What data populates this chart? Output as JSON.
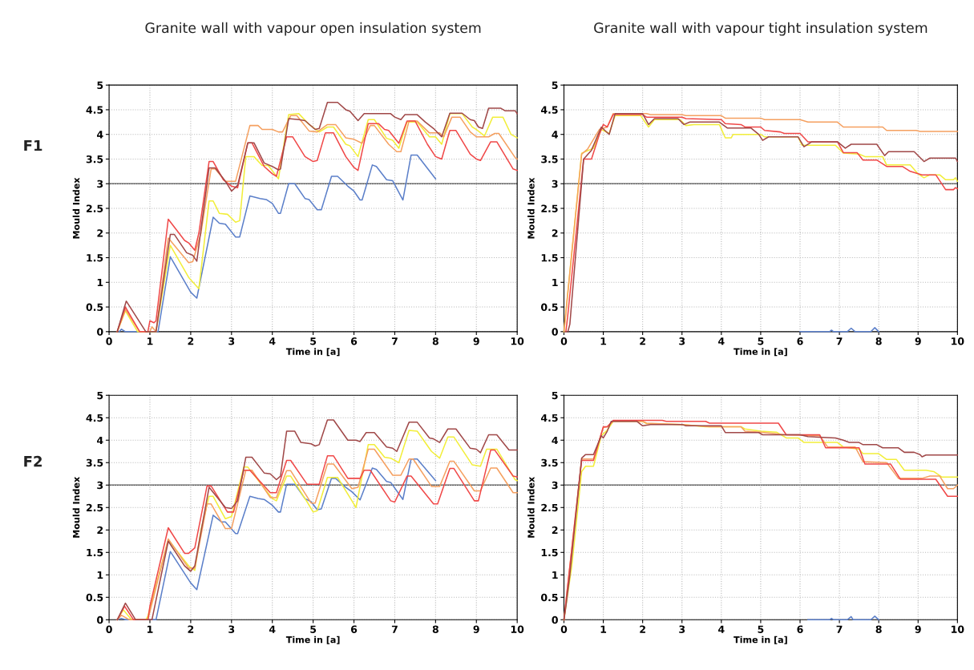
{
  "chart_data": [
    {
      "type": "line",
      "title": "Granite wall with vapour open insulation system",
      "annotations": [
        "F1"
      ],
      "xlabel": "Time in [a]",
      "ylabel": "Mould Index",
      "xlim": [
        0,
        10
      ],
      "ylim": [
        0,
        5
      ],
      "xticks": [
        0,
        1,
        2,
        3,
        4,
        5,
        6,
        7,
        8,
        9,
        10
      ],
      "yticks": [
        0,
        0.5,
        1,
        1.5,
        2,
        2.5,
        3,
        3.5,
        4,
        4.5,
        5
      ],
      "grid": true,
      "line_style": "solid",
      "ref_lines": [
        {
          "axis": "y",
          "value": 3,
          "color": "#555555"
        }
      ],
      "series": [
        {
          "color": "#5b7fc9",
          "x": [
            0.25,
            0.3,
            0.4,
            1.2,
            1.5,
            2.0,
            2.15,
            2.55,
            2.7,
            2.85,
            3.1,
            3.2,
            3.45,
            3.7,
            3.85,
            4.0,
            4.15,
            4.2,
            4.4,
            4.55,
            4.8,
            4.9,
            5.1,
            5.2,
            5.45,
            5.6,
            5.85,
            6.0,
            6.15,
            6.2,
            6.45,
            6.55,
            6.8,
            6.95,
            7.2,
            7.4,
            7.55,
            8.0
          ],
          "values": [
            0,
            0.05,
            0,
            0,
            1.52,
            0.8,
            0.68,
            2.32,
            2.2,
            2.18,
            1.92,
            1.92,
            2.75,
            2.7,
            2.68,
            2.6,
            2.4,
            2.4,
            3.0,
            3.0,
            2.7,
            2.68,
            2.47,
            2.47,
            3.15,
            3.15,
            2.95,
            2.85,
            2.67,
            2.67,
            3.38,
            3.35,
            3.08,
            3.06,
            2.67,
            3.58,
            3.58,
            3.1
          ]
        },
        {
          "color": "#f2ee3a",
          "x": [
            0.2,
            0.4,
            0.7,
            1.15,
            1.5,
            1.95,
            2.2,
            2.45,
            2.55,
            2.7,
            2.9,
            3.1,
            3.2,
            3.35,
            3.55,
            3.75,
            3.9,
            4.15,
            4.4,
            4.65,
            4.9,
            5.15,
            5.35,
            5.5,
            5.8,
            5.9,
            6.1,
            6.35,
            6.5,
            6.8,
            6.95,
            7.1,
            7.3,
            7.55,
            7.85,
            8.0,
            8.15,
            8.35,
            8.65,
            8.9,
            9.0,
            9.2,
            9.4,
            9.65,
            9.85,
            10
          ],
          "values": [
            0,
            0.42,
            0,
            0,
            1.75,
            1.1,
            0.87,
            2.65,
            2.65,
            2.4,
            2.38,
            2.22,
            2.25,
            3.55,
            3.55,
            3.37,
            3.37,
            3.1,
            4.4,
            4.42,
            4.2,
            4.05,
            4.15,
            4.15,
            3.8,
            3.77,
            3.55,
            4.3,
            4.3,
            3.92,
            3.88,
            3.72,
            4.25,
            4.25,
            3.95,
            3.95,
            3.8,
            4.42,
            4.42,
            4.15,
            4.1,
            3.97,
            4.35,
            4.35,
            4.0,
            3.93
          ]
        },
        {
          "color": "#f5a060",
          "x": [
            0.2,
            0.4,
            0.75,
            1.0,
            1.05,
            1.15,
            1.45,
            1.95,
            2.05,
            2.25,
            2.5,
            2.6,
            2.85,
            3.1,
            3.45,
            3.65,
            3.75,
            4.0,
            4.15,
            4.25,
            4.45,
            4.6,
            4.9,
            5.1,
            5.35,
            5.55,
            5.8,
            6.0,
            6.2,
            6.4,
            6.5,
            6.85,
            7.05,
            7.15,
            7.35,
            7.55,
            7.85,
            8.1,
            8.2,
            8.4,
            8.6,
            8.85,
            9.0,
            9.3,
            9.45,
            9.55,
            9.95,
            10
          ],
          "values": [
            0,
            0.45,
            0,
            0,
            0.1,
            0,
            1.9,
            1.4,
            1.42,
            2.0,
            3.3,
            3.3,
            3.05,
            3.05,
            4.18,
            4.18,
            4.1,
            4.1,
            4.05,
            4.05,
            4.38,
            4.38,
            4.07,
            4.05,
            4.2,
            4.2,
            3.93,
            3.9,
            3.82,
            4.18,
            4.18,
            3.8,
            3.65,
            3.65,
            4.27,
            4.27,
            4.03,
            4.03,
            3.95,
            4.35,
            4.35,
            4.05,
            3.95,
            3.95,
            4.02,
            4.02,
            3.53,
            3.5
          ]
        },
        {
          "color": "#f04848",
          "x": [
            0.2,
            0.4,
            0.75,
            0.95,
            1.0,
            1.1,
            1.15,
            1.45,
            1.85,
            1.95,
            2.1,
            2.2,
            2.45,
            2.55,
            2.8,
            3.0,
            3.15,
            3.4,
            3.5,
            3.8,
            4.0,
            4.1,
            4.35,
            4.5,
            4.8,
            5.0,
            5.1,
            5.3,
            5.5,
            5.8,
            6.0,
            6.1,
            6.35,
            6.6,
            6.75,
            6.85,
            7.1,
            7.3,
            7.5,
            7.8,
            8.0,
            8.15,
            8.35,
            8.5,
            8.85,
            9.0,
            9.1,
            9.35,
            9.5,
            9.9,
            10
          ],
          "values": [
            0,
            0.5,
            0,
            0,
            0.22,
            0.18,
            0.22,
            2.28,
            1.85,
            1.8,
            1.65,
            2.0,
            3.45,
            3.45,
            3.08,
            2.95,
            2.92,
            3.83,
            3.83,
            3.35,
            3.2,
            3.15,
            3.95,
            3.95,
            3.55,
            3.45,
            3.47,
            4.03,
            4.03,
            3.55,
            3.33,
            3.27,
            4.22,
            4.22,
            4.1,
            4.08,
            3.82,
            4.27,
            4.27,
            3.8,
            3.55,
            3.5,
            4.08,
            4.08,
            3.6,
            3.5,
            3.47,
            3.85,
            3.85,
            3.3,
            3.27
          ]
        },
        {
          "color": "#a04848",
          "x": [
            0.2,
            0.42,
            0.9,
            1.15,
            1.5,
            1.6,
            1.9,
            2.05,
            2.15,
            2.45,
            2.6,
            2.85,
            3.0,
            3.15,
            3.4,
            3.55,
            3.8,
            4.0,
            4.15,
            4.2,
            4.4,
            4.65,
            4.8,
            5.05,
            5.15,
            5.35,
            5.6,
            5.8,
            5.9,
            6.1,
            6.25,
            6.9,
            7.0,
            7.15,
            7.25,
            7.55,
            7.75,
            7.95,
            8.15,
            8.35,
            8.65,
            8.85,
            8.95,
            9.05,
            9.15,
            9.3,
            9.6,
            9.7,
            9.95,
            10
          ],
          "values": [
            0,
            0.62,
            0,
            0,
            1.97,
            1.97,
            1.6,
            1.55,
            1.43,
            3.32,
            3.32,
            3.05,
            2.85,
            2.97,
            3.83,
            3.83,
            3.42,
            3.35,
            3.28,
            3.3,
            4.32,
            4.3,
            4.28,
            4.1,
            4.12,
            4.65,
            4.65,
            4.5,
            4.47,
            4.28,
            4.42,
            4.42,
            4.35,
            4.3,
            4.4,
            4.4,
            4.25,
            4.12,
            3.95,
            4.43,
            4.43,
            4.3,
            4.28,
            4.15,
            4.12,
            4.53,
            4.53,
            4.48,
            4.48,
            4.42
          ]
        }
      ]
    },
    {
      "type": "line",
      "title": "Granite wall with vapour tight insulation system",
      "xlabel": "Time in [a]",
      "ylabel": "Mould Index",
      "xlim": [
        0,
        10
      ],
      "ylim": [
        0,
        5
      ],
      "xticks": [
        0,
        1,
        2,
        3,
        4,
        5,
        6,
        7,
        8,
        9,
        10
      ],
      "yticks": [
        0,
        0.5,
        1,
        1.5,
        2,
        2.5,
        3,
        3.5,
        4,
        4.5,
        5
      ],
      "grid": true,
      "line_style": "solid",
      "ref_lines": [
        {
          "axis": "y",
          "value": 3,
          "color": "#555555"
        }
      ],
      "series": [
        {
          "color": "#5b7fc9",
          "x": [
            6.0,
            6.75,
            6.8,
            6.85,
            7.2,
            7.3,
            7.4,
            7.8,
            7.9,
            8.0
          ],
          "values": [
            0,
            0,
            0.03,
            0,
            0,
            0.07,
            0,
            0,
            0.08,
            0
          ]
        },
        {
          "color": "#f2ee3a",
          "x": [
            0,
            0.45,
            0.75,
            0.95,
            1.15,
            1.3,
            1.95,
            2.15,
            2.3,
            2.95,
            3.1,
            3.3,
            3.95,
            4.1,
            4.25,
            4.3,
            5.0,
            5.1,
            5.95,
            6.05,
            6.9,
            7.1,
            7.5,
            7.65,
            8.1,
            8.2,
            8.8,
            9.0,
            9.15,
            9.3,
            9.55,
            9.7,
            9.9,
            9.95,
            10
          ],
          "values": [
            0,
            3.62,
            3.72,
            4.1,
            4.02,
            4.38,
            4.38,
            4.15,
            4.3,
            4.3,
            4.18,
            4.2,
            4.2,
            3.93,
            3.93,
            4.0,
            4.0,
            3.95,
            3.95,
            3.78,
            3.78,
            3.62,
            3.6,
            3.55,
            3.55,
            3.38,
            3.38,
            3.2,
            3.12,
            3.18,
            3.18,
            3.08,
            3.08,
            3.12,
            3.05
          ]
        },
        {
          "color": "#f5a060",
          "x": [
            0,
            0.45,
            0.6,
            0.9,
            1.1,
            1.25,
            2.1,
            2.2,
            3.0,
            3.1,
            4.0,
            4.1,
            5.0,
            5.1,
            6.0,
            6.2,
            6.95,
            7.1,
            8.1,
            8.2,
            8.95,
            9.05,
            10
          ],
          "values": [
            0,
            3.6,
            3.7,
            4.1,
            4.15,
            4.42,
            4.42,
            4.4,
            4.4,
            4.38,
            4.38,
            4.33,
            4.33,
            4.3,
            4.3,
            4.25,
            4.25,
            4.15,
            4.15,
            4.08,
            4.08,
            4.06,
            4.06
          ]
        },
        {
          "color": "#f04848",
          "x": [
            0.05,
            0.1,
            0.5,
            0.7,
            0.9,
            1.0,
            1.1,
            1.25,
            2.0,
            2.1,
            3.0,
            3.1,
            4.0,
            4.1,
            4.5,
            4.6,
            5.0,
            5.1,
            5.5,
            5.6,
            6.0,
            6.2,
            6.95,
            7.1,
            7.45,
            7.6,
            7.95,
            8.2,
            8.6,
            8.8,
            9.1,
            9.45,
            9.7,
            9.9,
            9.95,
            10
          ],
          "values": [
            0,
            0.35,
            3.5,
            3.5,
            4.0,
            4.2,
            4.15,
            4.4,
            4.4,
            4.35,
            4.35,
            4.32,
            4.3,
            4.22,
            4.2,
            4.15,
            4.15,
            4.08,
            4.05,
            4.02,
            4.02,
            3.85,
            3.85,
            3.63,
            3.63,
            3.48,
            3.48,
            3.35,
            3.35,
            3.25,
            3.18,
            3.18,
            2.88,
            2.88,
            2.92,
            2.9
          ]
        },
        {
          "color": "#a04848",
          "x": [
            0.1,
            0.15,
            0.5,
            0.7,
            0.95,
            1.15,
            1.3,
            2.0,
            2.15,
            2.3,
            2.9,
            3.05,
            3.2,
            3.95,
            4.15,
            4.75,
            4.95,
            5.05,
            5.2,
            5.95,
            6.1,
            6.3,
            6.95,
            7.15,
            7.3,
            7.95,
            8.15,
            8.25,
            8.9,
            9.15,
            9.3,
            9.95,
            10
          ],
          "values": [
            0,
            0.15,
            3.5,
            3.68,
            4.15,
            4.0,
            4.42,
            4.42,
            4.2,
            4.32,
            4.32,
            4.2,
            4.25,
            4.25,
            4.13,
            4.13,
            4.0,
            3.88,
            3.95,
            3.95,
            3.75,
            3.85,
            3.85,
            3.72,
            3.8,
            3.8,
            3.57,
            3.65,
            3.65,
            3.45,
            3.52,
            3.52,
            3.45
          ]
        }
      ]
    },
    {
      "type": "line",
      "annotations": [
        "F2"
      ],
      "xlabel": "Time in [a]",
      "ylabel": "Mould Index",
      "xlim": [
        0,
        10
      ],
      "ylim": [
        0,
        5
      ],
      "xticks": [
        0,
        1,
        2,
        3,
        4,
        5,
        6,
        7,
        8,
        9,
        10
      ],
      "yticks": [
        0,
        0.5,
        1,
        1.5,
        2,
        2.5,
        3,
        3.5,
        4,
        4.5,
        5
      ],
      "grid": true,
      "line_style": "solid",
      "ref_lines": [
        {
          "axis": "y",
          "value": 3,
          "color": "#555555"
        }
      ],
      "series": [
        {
          "color": "#5b7fc9",
          "x": [
            0.2,
            0.3,
            0.4,
            1.15,
            1.5,
            2.0,
            2.15,
            2.55,
            2.75,
            2.85,
            3.1,
            3.15,
            3.45,
            3.65,
            3.8,
            4.0,
            4.15,
            4.2,
            4.35,
            4.55,
            4.8,
            4.95,
            5.1,
            5.2,
            5.45,
            5.55,
            5.8,
            5.95,
            6.15,
            6.45,
            6.55,
            6.8,
            6.9,
            7.2,
            7.4,
            7.55,
            8.0
          ],
          "values": [
            0,
            0.03,
            0,
            0,
            1.52,
            0.82,
            0.67,
            2.33,
            2.18,
            2.18,
            1.92,
            1.92,
            2.75,
            2.7,
            2.68,
            2.55,
            2.4,
            2.4,
            3.02,
            3.02,
            2.7,
            2.63,
            2.45,
            2.47,
            3.15,
            3.15,
            2.95,
            2.85,
            2.67,
            3.38,
            3.35,
            3.08,
            3.06,
            2.68,
            3.58,
            3.58,
            3.1
          ]
        },
        {
          "color": "#f2ee3a",
          "x": [
            0.2,
            0.35,
            0.55,
            0.9,
            0.95,
            1.45,
            1.95,
            2.1,
            2.25,
            2.45,
            2.55,
            2.85,
            3.0,
            3.3,
            3.4,
            4.0,
            4.1,
            4.35,
            4.45,
            4.85,
            5.0,
            5.1,
            5.35,
            5.6,
            5.95,
            6.05,
            6.35,
            6.5,
            6.75,
            6.9,
            7.1,
            7.35,
            7.55,
            7.9,
            8.1,
            8.3,
            8.45,
            8.9,
            9.1,
            9.25,
            9.5,
            9.95,
            10
          ],
          "values": [
            0,
            0.22,
            0,
            0,
            0.08,
            1.78,
            1.2,
            1.1,
            2.0,
            2.75,
            2.75,
            2.25,
            2.3,
            3.4,
            3.4,
            2.7,
            2.65,
            3.2,
            3.2,
            2.63,
            2.4,
            2.43,
            3.17,
            3.17,
            2.65,
            2.5,
            3.9,
            3.9,
            3.62,
            3.6,
            3.5,
            4.22,
            4.2,
            3.75,
            3.6,
            4.07,
            4.07,
            3.45,
            3.42,
            3.8,
            3.8,
            3.12,
            3.1
          ]
        },
        {
          "color": "#f5a060",
          "x": [
            0.2,
            0.3,
            0.5,
            0.95,
            1.45,
            1.95,
            2.1,
            2.4,
            2.5,
            2.85,
            3.0,
            3.35,
            3.5,
            3.95,
            4.1,
            4.35,
            4.45,
            4.95,
            5.05,
            5.35,
            5.5,
            5.95,
            6.1,
            6.35,
            6.5,
            6.95,
            7.15,
            7.35,
            7.45,
            7.9,
            8.1,
            8.35,
            8.45,
            8.95,
            9.1,
            9.35,
            9.5,
            9.9,
            10
          ],
          "values": [
            0,
            0.1,
            0,
            0,
            1.8,
            1.15,
            1.15,
            2.58,
            2.58,
            2.03,
            2.03,
            3.33,
            3.33,
            2.72,
            2.72,
            3.32,
            3.32,
            2.6,
            2.6,
            3.47,
            3.47,
            2.92,
            2.95,
            3.8,
            3.8,
            3.22,
            3.22,
            3.58,
            3.58,
            2.97,
            2.97,
            3.53,
            3.53,
            2.87,
            2.87,
            3.38,
            3.38,
            2.83,
            2.83
          ]
        },
        {
          "color": "#f04848",
          "x": [
            0.2,
            0.38,
            0.6,
            0.95,
            1.0,
            1.45,
            1.85,
            1.95,
            2.1,
            2.4,
            2.5,
            2.9,
            3.05,
            3.3,
            3.45,
            3.95,
            4.1,
            4.35,
            4.45,
            4.85,
            5.15,
            5.35,
            5.5,
            5.85,
            6.15,
            6.25,
            6.4,
            6.9,
            7.0,
            7.3,
            7.4,
            7.95,
            8.05,
            8.35,
            8.45,
            8.95,
            9.05,
            9.35,
            9.45,
            9.9,
            10
          ],
          "values": [
            0,
            0.3,
            0,
            0,
            0.3,
            2.05,
            1.48,
            1.48,
            1.6,
            2.98,
            2.98,
            2.4,
            2.4,
            3.33,
            3.33,
            2.83,
            2.83,
            3.55,
            3.55,
            3.02,
            3.02,
            3.65,
            3.65,
            3.15,
            3.15,
            3.33,
            3.33,
            2.65,
            2.62,
            3.2,
            3.2,
            2.58,
            2.58,
            3.37,
            3.37,
            2.65,
            2.65,
            3.78,
            3.78,
            3.2,
            3.18
          ]
        },
        {
          "color": "#a04848",
          "x": [
            0.2,
            0.4,
            0.65,
            1.05,
            1.45,
            1.85,
            2.0,
            2.1,
            2.45,
            2.85,
            3.0,
            3.15,
            3.35,
            3.5,
            3.8,
            3.95,
            4.1,
            4.2,
            4.35,
            4.55,
            4.7,
            4.95,
            5.05,
            5.15,
            5.35,
            5.5,
            5.85,
            6.05,
            6.15,
            6.3,
            6.5,
            6.8,
            6.95,
            7.05,
            7.35,
            7.55,
            7.85,
            7.95,
            8.1,
            8.3,
            8.5,
            8.85,
            9.0,
            9.1,
            9.3,
            9.5,
            9.8,
            10
          ],
          "values": [
            0,
            0.37,
            0,
            0,
            1.75,
            1.2,
            1.08,
            1.2,
            2.95,
            2.5,
            2.48,
            2.65,
            3.62,
            3.62,
            3.27,
            3.25,
            3.12,
            3.2,
            4.2,
            4.2,
            3.95,
            3.92,
            3.87,
            3.9,
            4.45,
            4.45,
            4.0,
            4.0,
            3.97,
            4.17,
            4.17,
            3.85,
            3.82,
            3.75,
            4.4,
            4.4,
            4.05,
            4.03,
            3.95,
            4.25,
            4.25,
            3.82,
            3.8,
            3.72,
            4.12,
            4.12,
            3.78,
            3.78
          ]
        }
      ]
    },
    {
      "type": "line",
      "xlabel": "Time in [a]",
      "ylabel": "Mould Index",
      "xlim": [
        0,
        10
      ],
      "ylim": [
        0,
        5
      ],
      "xticks": [
        0,
        1,
        2,
        3,
        4,
        5,
        6,
        7,
        8,
        9,
        10
      ],
      "yticks": [
        0,
        0.5,
        1,
        1.5,
        2,
        2.5,
        3,
        3.5,
        4,
        4.5,
        5
      ],
      "grid": true,
      "line_style": "solid",
      "ref_lines": [
        {
          "axis": "y",
          "value": 3,
          "color": "#555555"
        }
      ],
      "series": [
        {
          "color": "#5b7fc9",
          "x": [
            6.2,
            6.75,
            6.8,
            6.85,
            7.2,
            7.3,
            7.35,
            7.8,
            7.9,
            8.0
          ],
          "values": [
            0,
            0,
            0.03,
            0,
            0,
            0.07,
            0,
            0,
            0.08,
            0
          ]
        },
        {
          "color": "#f2ee3a",
          "x": [
            0,
            0.2,
            0.45,
            0.55,
            0.75,
            0.95,
            1.1,
            1.25,
            2.0,
            2.1,
            3.0,
            3.6,
            4.5,
            4.6,
            5.0,
            5.4,
            5.65,
            5.95,
            6.1,
            6.95,
            7.1,
            7.5,
            7.6,
            8.0,
            8.2,
            8.45,
            8.65,
            9.2,
            9.4,
            9.6,
            10
          ],
          "values": [
            0,
            1.2,
            3.3,
            3.42,
            3.42,
            4.1,
            4.22,
            4.42,
            4.42,
            4.37,
            4.35,
            4.3,
            4.3,
            4.25,
            4.2,
            4.18,
            4.05,
            4.05,
            3.95,
            3.95,
            3.85,
            3.8,
            3.7,
            3.7,
            3.57,
            3.57,
            3.33,
            3.33,
            3.3,
            3.18,
            3.18
          ]
        },
        {
          "color": "#f5a060",
          "x": [
            0,
            0.45,
            0.75,
            1.0,
            1.1,
            1.25,
            2.0,
            2.1,
            3.0,
            3.7,
            4.5,
            4.6,
            5.0,
            5.3,
            5.6,
            6.5,
            6.7,
            7.4,
            7.6,
            8.2,
            8.5,
            9.1,
            9.3,
            9.55,
            9.75,
            9.9,
            10
          ],
          "values": [
            0,
            3.58,
            3.58,
            4.28,
            4.3,
            4.42,
            4.42,
            4.38,
            4.35,
            4.3,
            4.3,
            4.2,
            4.18,
            4.15,
            4.12,
            4.1,
            3.85,
            3.85,
            3.52,
            3.5,
            3.15,
            3.15,
            3.2,
            3.2,
            2.92,
            2.92,
            3.0
          ]
        },
        {
          "color": "#f04848",
          "x": [
            0,
            0.45,
            0.75,
            1.0,
            1.1,
            1.25,
            2.5,
            2.6,
            3.6,
            3.7,
            5.45,
            5.65,
            6.5,
            6.65,
            7.5,
            7.65,
            8.3,
            8.55,
            9.45,
            9.75,
            10
          ],
          "values": [
            0,
            3.55,
            3.55,
            4.3,
            4.3,
            4.44,
            4.44,
            4.42,
            4.42,
            4.38,
            4.38,
            4.12,
            4.12,
            3.83,
            3.83,
            3.47,
            3.47,
            3.13,
            3.13,
            2.75,
            2.75
          ]
        },
        {
          "color": "#a04848",
          "x": [
            0,
            0.05,
            0.15,
            0.45,
            0.55,
            0.75,
            0.95,
            1.0,
            1.1,
            1.2,
            1.85,
            2.0,
            2.2,
            3.0,
            3.1,
            4.0,
            4.1,
            4.95,
            5.05,
            6.0,
            6.2,
            6.9,
            7.1,
            7.25,
            7.5,
            7.6,
            7.95,
            8.1,
            8.5,
            8.65,
            8.9,
            9.05,
            9.1,
            9.2,
            10
          ],
          "values": [
            0,
            0.3,
            1.0,
            3.6,
            3.68,
            3.68,
            4.1,
            4.05,
            4.2,
            4.42,
            4.42,
            4.32,
            4.35,
            4.35,
            4.32,
            4.32,
            4.17,
            4.17,
            4.12,
            4.12,
            4.08,
            4.05,
            4.0,
            3.95,
            3.95,
            3.9,
            3.9,
            3.83,
            3.83,
            3.73,
            3.73,
            3.68,
            3.63,
            3.67,
            3.67
          ]
        }
      ]
    }
  ]
}
